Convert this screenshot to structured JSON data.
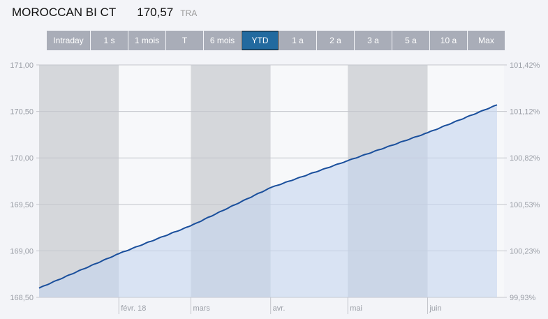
{
  "header": {
    "name": "MOROCCAN BI CT",
    "price": "170,57",
    "unit": "TRA"
  },
  "ranges": [
    "Intraday",
    "1 s",
    "1 mois",
    "T",
    "6 mois",
    "YTD",
    "1 a",
    "2 a",
    "3 a",
    "5 a",
    "10 a",
    "Max"
  ],
  "active_range": "YTD",
  "chart_data": {
    "type": "area",
    "x": [
      "2018-01-01",
      "2018-02-01",
      "2018-03-01",
      "2018-04-01",
      "2018-05-01",
      "2018-06-01",
      "2018-06-28"
    ],
    "values": [
      168.6,
      168.97,
      169.27,
      169.68,
      169.97,
      170.27,
      170.57
    ],
    "ylim": [
      168.5,
      171.0
    ],
    "y_ticks": [
      "171,00",
      "170,50",
      "170,00",
      "169,50",
      "169,00",
      "168,50"
    ],
    "y2_ticks": [
      "101,42%",
      "101,12%",
      "100,82%",
      "100,53%",
      "100,23%",
      "99,93%"
    ],
    "x_ticks": [
      "févr. 18",
      "mars",
      "avr.",
      "mai",
      "juin"
    ],
    "grid": true,
    "colors": {
      "line": "#1a4f9c",
      "fill": "#c5d6ee",
      "band_dark": "#d5d7db",
      "band_light": "#f7f8fa"
    }
  }
}
